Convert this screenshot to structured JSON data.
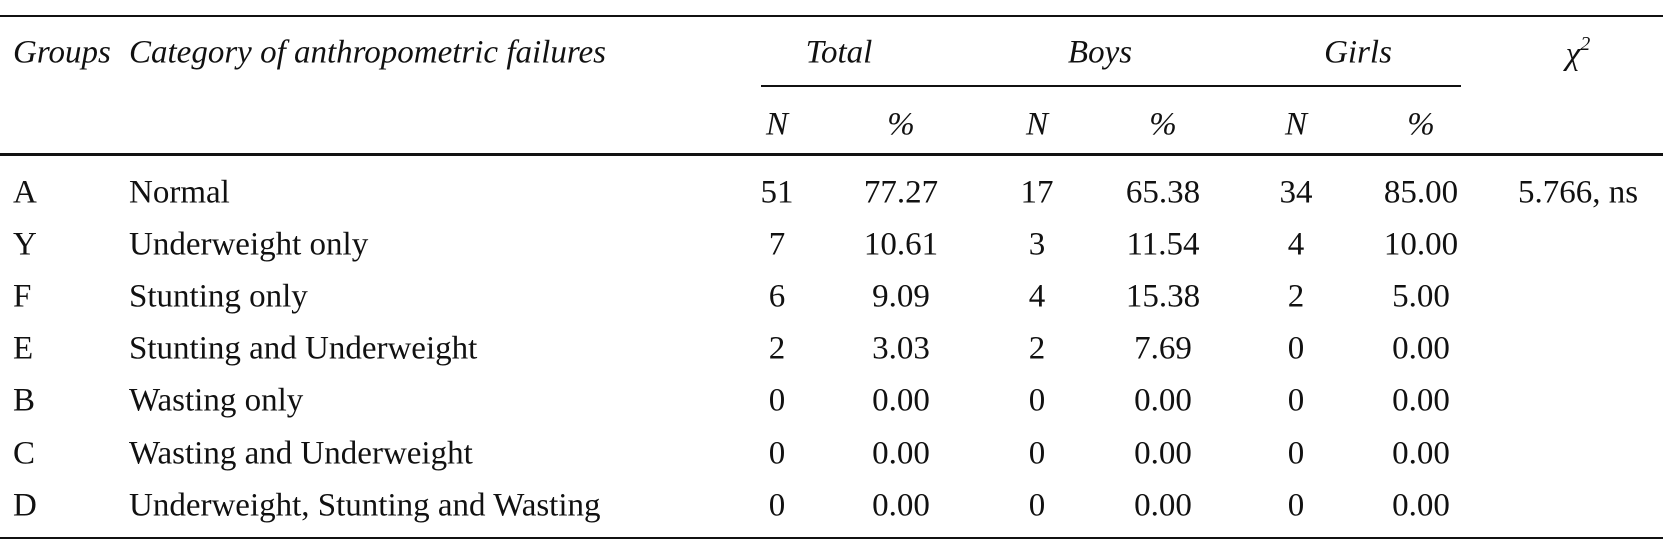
{
  "table": {
    "header": {
      "groups": "Groups",
      "category": "Category of anthropometric failures",
      "total": "Total",
      "boys": "Boys",
      "girls": "Girls",
      "chi": {
        "symbol": "χ",
        "sup": "2"
      },
      "subheaders": [
        "N",
        "%",
        "N",
        "%",
        "N",
        "%"
      ]
    },
    "rows": [
      [
        "A",
        "Normal",
        "51",
        "77.27",
        "17",
        "65.38",
        "34",
        "85.00",
        "5.766, ns"
      ],
      [
        "Y",
        "Underweight only",
        "7",
        "10.61",
        "3",
        "11.54",
        "4",
        "10.00"
      ],
      [
        "F",
        "Stunting only",
        "6",
        "9.09",
        "4",
        "15.38",
        "2",
        "5.00"
      ],
      [
        "E",
        "Stunting and Underweight",
        "2",
        "3.03",
        "2",
        "7.69",
        "0",
        "0.00"
      ],
      [
        "B",
        "Wasting only",
        "0",
        "0.00",
        "0",
        "0.00",
        "0",
        "0.00"
      ],
      [
        "C",
        "Wasting and Underweight",
        "0",
        "0.00",
        "0",
        "0.00",
        "0",
        "0.00"
      ],
      [
        "D",
        "Underweight, Stunting and Wasting",
        "0",
        "0.00",
        "0",
        "0.00",
        "0",
        "0.00"
      ]
    ]
  }
}
